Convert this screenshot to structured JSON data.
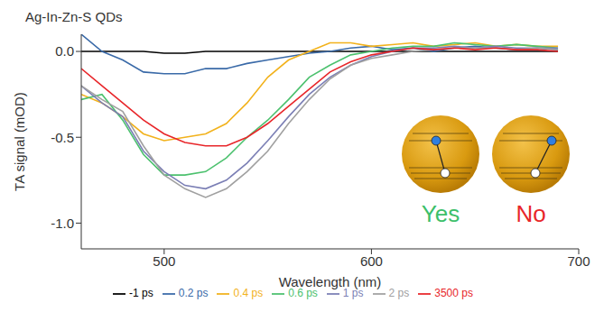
{
  "chart_data": {
    "type": "line",
    "title": "Ag-In-Zn-S QDs",
    "x_label": "Wavelength (nm)",
    "y_label": "TA signal (mOD)",
    "x": [
      460,
      470,
      480,
      490,
      500,
      510,
      520,
      530,
      540,
      550,
      560,
      570,
      580,
      590,
      600,
      610,
      620,
      630,
      640,
      650,
      660,
      670,
      680,
      690
    ],
    "series": [
      {
        "name": "-1 ps",
        "color": "#000000",
        "values": [
          0.0,
          0.0,
          0.0,
          0.0,
          -0.01,
          -0.01,
          0.0,
          0.0,
          0.0,
          0.0,
          0.0,
          0.0,
          0.0,
          0.0,
          0.0,
          0.0,
          0.0,
          0.0,
          0.0,
          0.0,
          0.0,
          0.0,
          0.0,
          0.0
        ]
      },
      {
        "name": "0.2 ps",
        "color": "#3a6aa8",
        "values": [
          0.1,
          0.0,
          -0.05,
          -0.12,
          -0.13,
          -0.13,
          -0.1,
          -0.1,
          -0.07,
          -0.05,
          -0.03,
          -0.01,
          0.0,
          0.02,
          0.03,
          0.01,
          0.02,
          0.0,
          0.02,
          0.03,
          0.02,
          0.01,
          0.02,
          0.01
        ]
      },
      {
        "name": "0.4 ps",
        "color": "#f2b21c",
        "values": [
          -0.25,
          -0.3,
          -0.38,
          -0.48,
          -0.52,
          -0.5,
          -0.48,
          -0.42,
          -0.3,
          -0.15,
          -0.05,
          0.0,
          0.05,
          0.05,
          0.03,
          0.04,
          0.05,
          0.03,
          0.04,
          0.05,
          0.03,
          0.04,
          0.03,
          0.03
        ]
      },
      {
        "name": "0.6 ps",
        "color": "#4cc16e",
        "values": [
          -0.28,
          -0.25,
          -0.4,
          -0.6,
          -0.72,
          -0.72,
          -0.7,
          -0.62,
          -0.5,
          -0.4,
          -0.28,
          -0.15,
          -0.08,
          -0.02,
          0.0,
          0.02,
          0.03,
          0.03,
          0.05,
          0.04,
          0.03,
          0.04,
          0.03,
          0.02
        ]
      },
      {
        "name": "1 ps",
        "color": "#7b7fb5",
        "values": [
          -0.2,
          -0.3,
          -0.38,
          -0.58,
          -0.7,
          -0.78,
          -0.8,
          -0.75,
          -0.65,
          -0.52,
          -0.38,
          -0.25,
          -0.15,
          -0.08,
          -0.03,
          0.0,
          0.02,
          0.02,
          0.03,
          0.02,
          0.03,
          0.02,
          0.02,
          0.02
        ]
      },
      {
        "name": "2 ps",
        "color": "#a0a0a0",
        "values": [
          -0.2,
          -0.28,
          -0.35,
          -0.55,
          -0.72,
          -0.8,
          -0.85,
          -0.8,
          -0.7,
          -0.58,
          -0.42,
          -0.28,
          -0.16,
          -0.08,
          -0.04,
          -0.02,
          0.0,
          0.01,
          0.02,
          0.02,
          0.02,
          0.01,
          0.02,
          0.01
        ]
      },
      {
        "name": "3500 ps",
        "color": "#e8262a",
        "values": [
          -0.1,
          -0.2,
          -0.3,
          -0.4,
          -0.48,
          -0.53,
          -0.55,
          -0.55,
          -0.5,
          -0.42,
          -0.32,
          -0.22,
          -0.12,
          -0.06,
          -0.02,
          0.0,
          0.02,
          0.01,
          0.02,
          0.01,
          0.02,
          0.01,
          0.01,
          0.0
        ]
      }
    ],
    "xlim": [
      460,
      700
    ],
    "xticks": [
      500,
      600,
      700
    ],
    "ylim": [
      -1.15,
      0.1
    ],
    "yticks": [
      {
        "value": -1.0,
        "label": "-1.0"
      },
      -0.5,
      {
        "value": 0.0,
        "label": "0.0"
      }
    ],
    "legend": "bottom",
    "annotations": [
      {
        "text": "Yes",
        "color": "#3cbf6a"
      },
      {
        "text": "No",
        "color": "#e8262a"
      }
    ]
  }
}
